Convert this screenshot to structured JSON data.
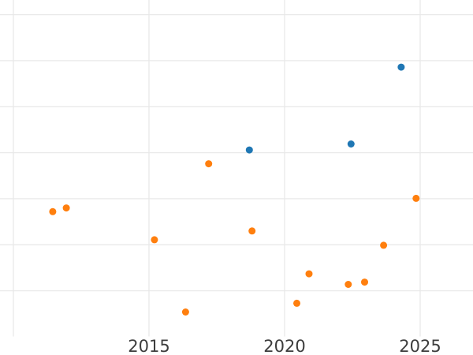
{
  "chart_data": {
    "type": "scatter",
    "title": "",
    "xlabel": "",
    "ylabel": "",
    "grid": true,
    "legend": false,
    "x_axis": {
      "tick_labels": [
        "2015",
        "2020",
        "2025"
      ],
      "tick_years": [
        2015,
        2020,
        2025
      ],
      "gridline_years": [
        2010,
        2015,
        2020,
        2025
      ],
      "visible_year_range": [
        2009.5,
        2027.0
      ],
      "note": "plot is cropped; 2010 gridline visible at far left without its label"
    },
    "y_axis": {
      "labels_visible": false,
      "gridline_units": [
        1,
        2,
        3,
        4,
        5,
        6,
        7
      ],
      "visible_unit_range": [
        0,
        7.3
      ],
      "note": "y tick labels are cropped out of view; y values estimated in gridline units above the plot bottom edge"
    },
    "series": [
      {
        "name": "blue-series",
        "color": "#1f77b4",
        "points": [
          {
            "x": 2018.7,
            "y": 4.06
          },
          {
            "x": 2022.45,
            "y": 4.19
          },
          {
            "x": 2024.3,
            "y": 5.86
          }
        ]
      },
      {
        "name": "orange-series",
        "color": "#ff7f0e",
        "points": [
          {
            "x": 2011.45,
            "y": 2.72
          },
          {
            "x": 2011.95,
            "y": 2.8
          },
          {
            "x": 2015.2,
            "y": 2.11
          },
          {
            "x": 2016.35,
            "y": 0.54
          },
          {
            "x": 2017.2,
            "y": 3.76
          },
          {
            "x": 2018.8,
            "y": 2.3
          },
          {
            "x": 2020.45,
            "y": 0.73
          },
          {
            "x": 2020.9,
            "y": 1.37
          },
          {
            "x": 2022.35,
            "y": 1.14
          },
          {
            "x": 2022.95,
            "y": 1.19
          },
          {
            "x": 2023.65,
            "y": 1.99
          },
          {
            "x": 2024.85,
            "y": 3.01
          }
        ]
      }
    ],
    "marker": {
      "shape": "circle",
      "radius_px": 4.5
    },
    "colors": {
      "background": "#ffffff",
      "gridline": "#e9e9e9",
      "tick_label": "#3d3d3d",
      "blue_marker": "#1f77b4",
      "orange_marker": "#ff7f0e"
    }
  }
}
